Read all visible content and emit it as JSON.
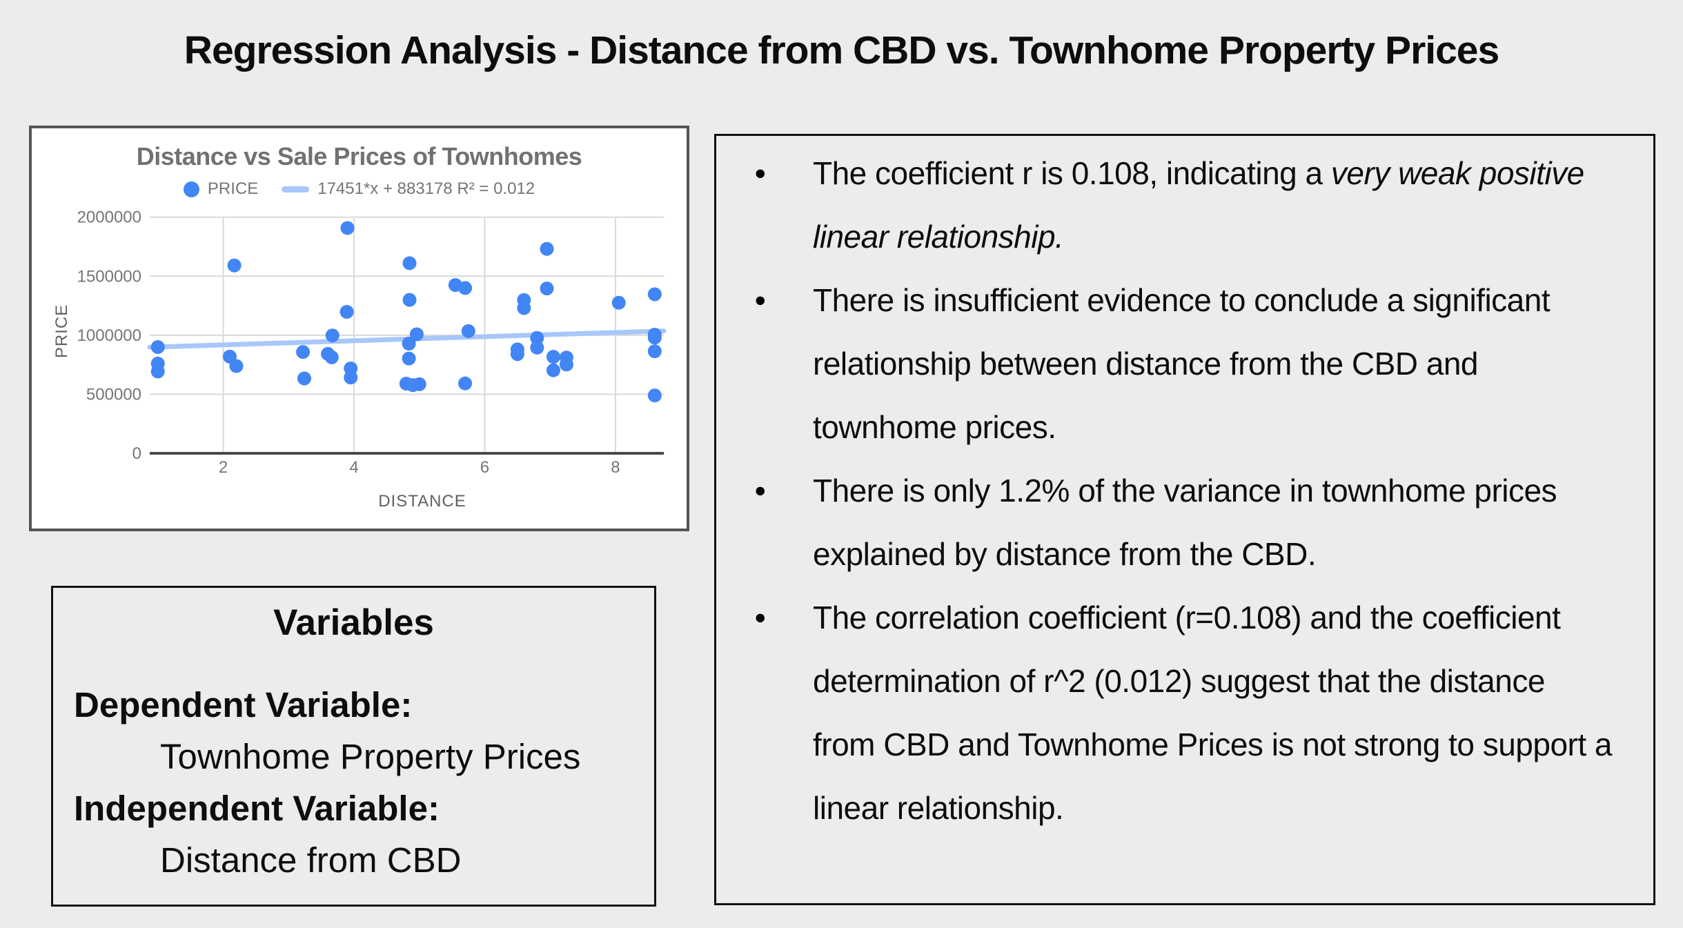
{
  "page": {
    "title": "Regression Analysis - Distance from CBD vs. Townhome Property Prices",
    "background_color": "#ECECEC"
  },
  "chart_data": {
    "type": "scatter",
    "title": "Distance vs Sale Prices of Townhomes",
    "xlabel": "DISTANCE",
    "ylabel": "PRICE",
    "grid": true,
    "legend_position": "top",
    "legend": [
      {
        "label": "PRICE",
        "marker": "dot",
        "color": "#4285F4"
      },
      {
        "label": "17451*x + 883178 R² = 0.012",
        "marker": "line",
        "color": "#A8C7FA"
      }
    ],
    "point_color": "#4285F4",
    "trend_color": "#A8C7FA",
    "gridline_color": "#D9D9D9",
    "axis_line_color": "#4a4a4a",
    "tick_label_color": "#757575",
    "axis_title_color": "#616161",
    "xlim": [
      0.876,
      8.74
    ],
    "ylim": [
      0,
      2000000
    ],
    "x_ticks": [
      2,
      4,
      6,
      8
    ],
    "y_ticks": [
      0,
      500000,
      1000000,
      1500000,
      2000000
    ],
    "trendline": {
      "slope": 17451,
      "intercept": 883178,
      "r_squared": 0.012
    },
    "points": [
      [
        1.0,
        900000
      ],
      [
        1.0,
        760000
      ],
      [
        1.0,
        693000
      ],
      [
        2.17,
        1591000
      ],
      [
        2.1,
        819000
      ],
      [
        2.2,
        739000
      ],
      [
        3.22,
        858000
      ],
      [
        3.24,
        634000
      ],
      [
        3.67,
        998000
      ],
      [
        3.6,
        842000
      ],
      [
        3.66,
        813000
      ],
      [
        3.9,
        1908000
      ],
      [
        3.89,
        1198000
      ],
      [
        3.95,
        719000
      ],
      [
        3.95,
        642000
      ],
      [
        4.85,
        1610000
      ],
      [
        4.85,
        1299000
      ],
      [
        4.96,
        1008000
      ],
      [
        4.84,
        929000
      ],
      [
        4.84,
        803000
      ],
      [
        4.8,
        590000
      ],
      [
        4.9,
        578000
      ],
      [
        5.0,
        585000
      ],
      [
        5.55,
        1425000
      ],
      [
        5.7,
        1400000
      ],
      [
        5.75,
        1035000
      ],
      [
        5.7,
        592000
      ],
      [
        6.5,
        880000
      ],
      [
        6.5,
        840000
      ],
      [
        6.6,
        1298000
      ],
      [
        6.6,
        1230000
      ],
      [
        6.8,
        977000
      ],
      [
        6.8,
        895000
      ],
      [
        6.95,
        1731000
      ],
      [
        6.95,
        1396000
      ],
      [
        7.05,
        817000
      ],
      [
        7.05,
        703000
      ],
      [
        7.25,
        811000
      ],
      [
        7.25,
        752000
      ],
      [
        8.05,
        1275000
      ],
      [
        8.6,
        1347000
      ],
      [
        8.6,
        1005000
      ],
      [
        8.6,
        980000
      ],
      [
        8.6,
        864000
      ],
      [
        8.6,
        490000
      ]
    ]
  },
  "variables_box": {
    "title": "Variables",
    "items": [
      {
        "label": "Dependent Variable:",
        "value": "Townhome Property Prices"
      },
      {
        "label": "Independent Variable:",
        "value": "Distance from CBD"
      }
    ]
  },
  "analysis": {
    "bullet_char": "●",
    "bullets": [
      {
        "segments": [
          {
            "text": "The coefficient r is 0.108, indicating a ",
            "italic": false
          },
          {
            "text": "very weak positive linear relationship.",
            "italic": true
          }
        ]
      },
      {
        "segments": [
          {
            "text": "There is insufficient evidence to conclude a significant relationship between distance from the CBD and townhome prices.",
            "italic": false
          }
        ]
      },
      {
        "segments": [
          {
            "text": "There is only 1.2% of the variance in townhome prices explained by distance from the CBD.",
            "italic": false
          }
        ]
      },
      {
        "segments": [
          {
            "text": "The correlation coefficient (r=0.108) and the coefficient determination of r^2 (0.012) suggest that the distance from CBD and Townhome Prices is not strong to support a linear relationship.",
            "italic": false
          }
        ]
      }
    ]
  }
}
